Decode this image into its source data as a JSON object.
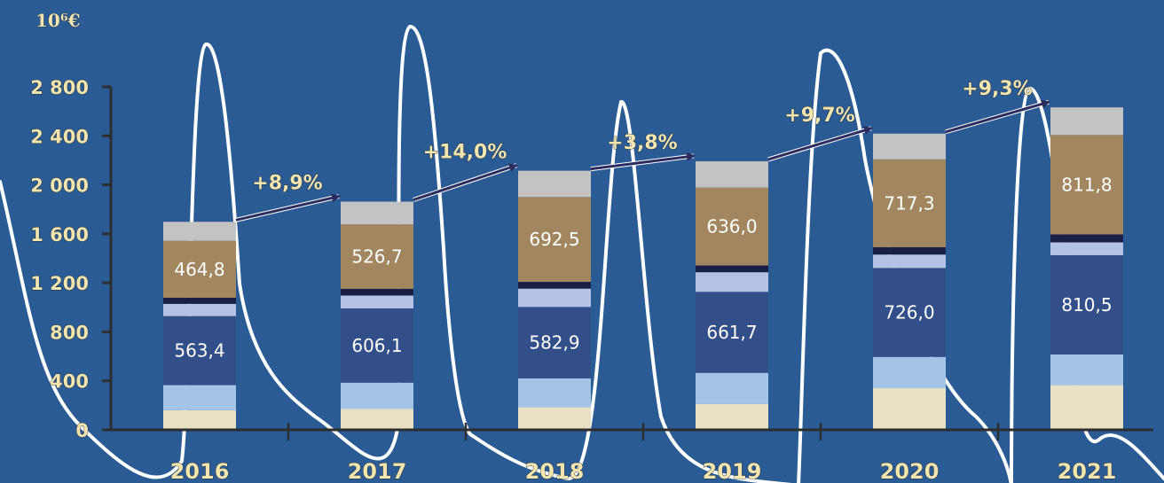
{
  "chart_data": {
    "type": "bar",
    "stacked": true,
    "unit_label": "10⁶€",
    "categories": [
      "2016",
      "2017",
      "2018",
      "2019",
      "2020",
      "2021"
    ],
    "y_ticks": [
      "0",
      "400",
      "800",
      "1 200",
      "1 600",
      "2 000",
      "2 400",
      "2 800"
    ],
    "y_tick_values": [
      0,
      400,
      800,
      1200,
      1600,
      2000,
      2400,
      2800
    ],
    "ylim": [
      0,
      2800
    ],
    "series": [
      {
        "color": "#e8e0c4",
        "values": [
          160,
          170,
          185,
          210,
          340,
          365
        ]
      },
      {
        "color": "#a3c4e4",
        "values": [
          205,
          215,
          235,
          255,
          255,
          250
        ]
      },
      {
        "color": "#334f8a",
        "values": [
          563.4,
          606.1,
          582.9,
          661.7,
          726.0,
          810.5
        ],
        "labels": [
          "563,4",
          "606,1",
          "582,9",
          "661,7",
          "726,0",
          "810,5"
        ]
      },
      {
        "color": "#b6c1e6",
        "values": [
          100,
          105,
          150,
          160,
          110,
          105
        ]
      },
      {
        "color": "#1a1f48",
        "values": [
          50,
          55,
          55,
          55,
          60,
          65
        ]
      },
      {
        "color": "#a2865f",
        "values": [
          464.8,
          526.7,
          692.5,
          636.0,
          717.3,
          811.8
        ],
        "labels": [
          "464,8",
          "526,7",
          "692,5",
          "636,0",
          "717,3",
          "811,8"
        ]
      },
      {
        "color": "#c3c3c3",
        "values": [
          155,
          185,
          215,
          215,
          210,
          225
        ]
      }
    ],
    "growth_labels": [
      "+8,9%",
      "+14,0%",
      "+3,8%",
      "+9,7%",
      "+9,3%"
    ],
    "background": "#2a5b95",
    "axis_color": "#2e2e2e",
    "arrow_color": "#2c2c5e"
  }
}
